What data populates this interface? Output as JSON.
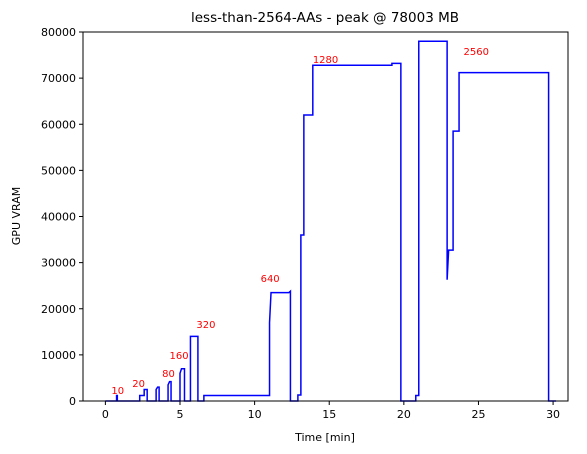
{
  "chart_data": {
    "type": "line",
    "title": "less-than-2564-AAs - peak @ 78003 MB",
    "xlabel": "Time [min]",
    "ylabel": "GPU VRAM",
    "color": "#0000ff",
    "xlim": [
      -1.5,
      31.0
    ],
    "ylim": [
      0,
      80000
    ],
    "xticks": [
      0,
      5,
      10,
      15,
      20,
      25,
      30
    ],
    "yticks": [
      0,
      10000,
      20000,
      30000,
      40000,
      50000,
      60000,
      70000,
      80000
    ],
    "x": [
      0,
      0.75,
      0.75,
      0.8,
      0.8,
      2.3,
      2.3,
      2.6,
      2.6,
      2.8,
      2.8,
      3.4,
      3.4,
      3.5,
      3.6,
      3.6,
      4.2,
      4.2,
      4.3,
      4.4,
      4.4,
      5.0,
      5.0,
      5.1,
      5.3,
      5.3,
      5.7,
      5.7,
      6.2,
      6.2,
      6.6,
      6.6,
      11.0,
      11.0,
      11.1,
      12.3,
      12.4,
      12.4,
      12.9,
      12.9,
      13.1,
      13.1,
      13.3,
      13.3,
      13.9,
      13.9,
      19.2,
      19.2,
      19.8,
      19.8,
      20.8,
      20.8,
      21.0,
      21.0,
      22.9,
      22.9,
      23.0,
      23.3,
      23.3,
      23.7,
      23.7,
      29.7,
      29.7,
      30.2
    ],
    "values": [
      0,
      0,
      1200,
      1200,
      0,
      0,
      1200,
      1200,
      2500,
      2500,
      0,
      0,
      2500,
      3000,
      3000,
      0,
      0,
      3500,
      4200,
      4200,
      0,
      0,
      6000,
      7000,
      7000,
      0,
      0,
      14000,
      14000,
      0,
      0,
      1200,
      1200,
      17000,
      23500,
      23500,
      23800,
      0,
      0,
      1300,
      1300,
      36000,
      36000,
      62000,
      62000,
      72800,
      72800,
      73200,
      73200,
      0,
      0,
      1200,
      1200,
      78003,
      78003,
      26300,
      32700,
      32700,
      58500,
      58500,
      71200,
      71200,
      0,
      0
    ],
    "annotations": [
      {
        "text": "10",
        "x": 0.4,
        "y": 1500
      },
      {
        "text": "20",
        "x": 1.8,
        "y": 3000
      },
      {
        "text": "80",
        "x": 3.8,
        "y": 5200
      },
      {
        "text": "160",
        "x": 4.3,
        "y": 9100
      },
      {
        "text": "320",
        "x": 6.1,
        "y": 15800
      },
      {
        "text": "640",
        "x": 10.4,
        "y": 25800
      },
      {
        "text": "1280",
        "x": 13.9,
        "y": 73300
      },
      {
        "text": "2560",
        "x": 24.0,
        "y": 75000
      }
    ]
  }
}
